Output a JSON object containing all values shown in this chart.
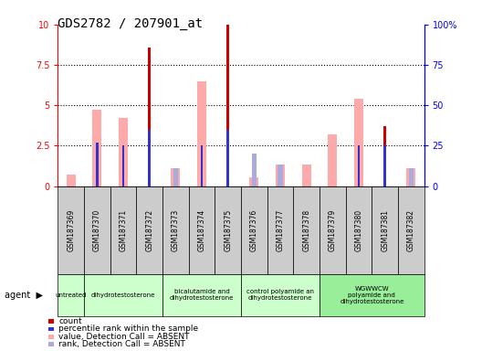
{
  "title": "GDS2782 / 207901_at",
  "samples": [
    "GSM187369",
    "GSM187370",
    "GSM187371",
    "GSM187372",
    "GSM187373",
    "GSM187374",
    "GSM187375",
    "GSM187376",
    "GSM187377",
    "GSM187378",
    "GSM187379",
    "GSM187380",
    "GSM187381",
    "GSM187382"
  ],
  "count": [
    0,
    0,
    0,
    8.6,
    0,
    0,
    10.0,
    0,
    0,
    0,
    0,
    0,
    3.7,
    0
  ],
  "percentile_rank": [
    0,
    27,
    25,
    35,
    0,
    25,
    35,
    0,
    0,
    0,
    0,
    25,
    25,
    0
  ],
  "value_absent": [
    0.7,
    4.7,
    4.2,
    0,
    1.1,
    6.5,
    0,
    0.55,
    1.35,
    1.35,
    3.2,
    5.4,
    0,
    1.1
  ],
  "rank_absent": [
    0,
    0,
    0,
    0,
    1.1,
    0,
    0,
    2.0,
    1.35,
    0,
    0,
    0,
    0,
    1.1
  ],
  "groups": [
    {
      "label": "untreated",
      "start": 0,
      "end": 1
    },
    {
      "label": "dihydrotestosterone",
      "start": 1,
      "end": 4
    },
    {
      "label": "bicalutamide and\ndihydrotestosterone",
      "start": 4,
      "end": 7
    },
    {
      "label": "control polyamide an\ndihydrotestosterone",
      "start": 7,
      "end": 10
    },
    {
      "label": "WGWWCW\npolyamide and\ndihydrotestosterone",
      "start": 10,
      "end": 14
    }
  ],
  "group_colors": [
    "#ccffcc",
    "#ccffcc",
    "#ccffcc",
    "#ccffcc",
    "#99ee99"
  ],
  "ylim_left": [
    0,
    10
  ],
  "ylim_right": [
    0,
    100
  ],
  "count_color": "#cc0000",
  "rank_color": "#3333cc",
  "value_absent_color": "#ffaaaa",
  "rank_absent_color": "#aaaadd",
  "sample_box_color": "#cccccc",
  "bg_color": "#ffffff"
}
